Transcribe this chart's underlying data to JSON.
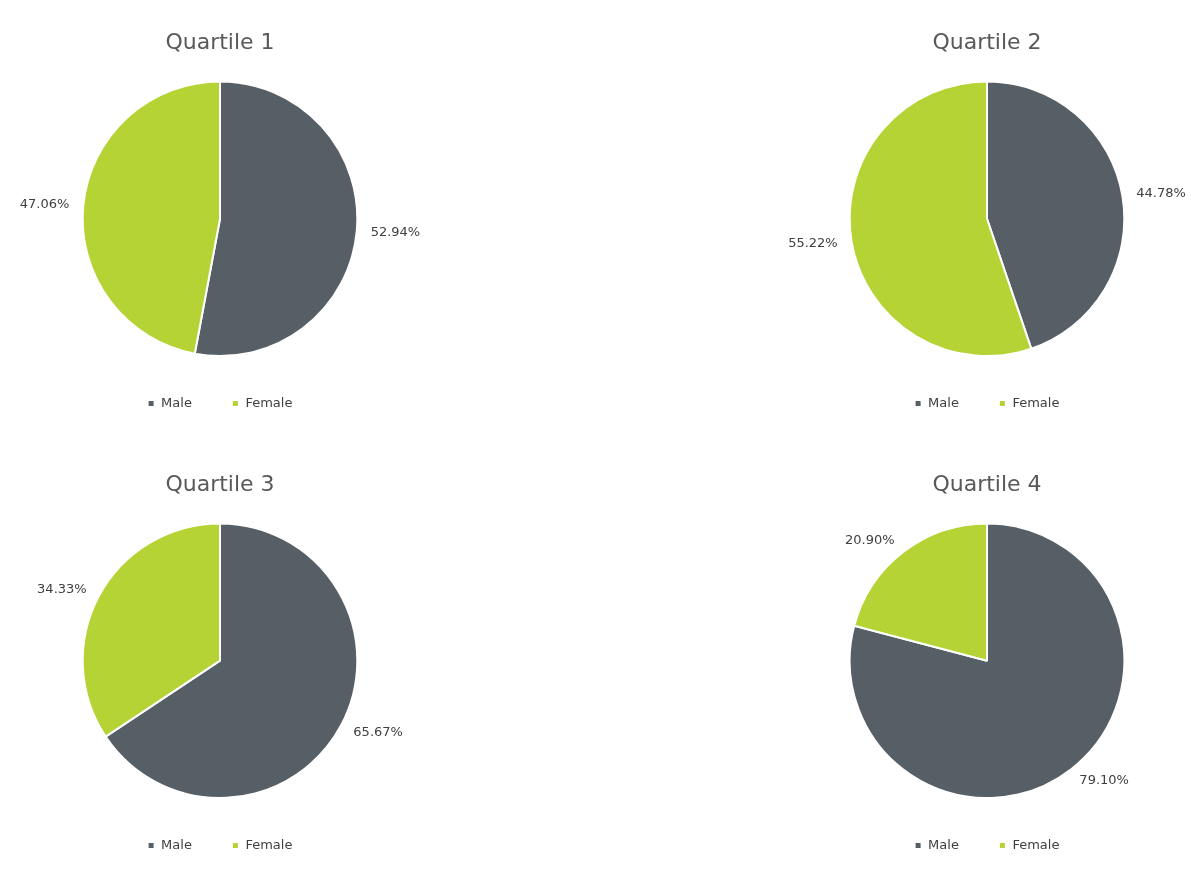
{
  "chart_data": [
    {
      "type": "pie",
      "title": "Quartile 1",
      "categories": [
        "Male",
        "Female"
      ],
      "values": [
        52.94,
        47.06
      ],
      "value_labels": [
        "52.94%",
        "47.06%"
      ],
      "colors": [
        "#565e66",
        "#b5d334"
      ],
      "legend": "bottom"
    },
    {
      "type": "pie",
      "title": "Quartile 2",
      "categories": [
        "Male",
        "Female"
      ],
      "values": [
        44.78,
        55.22
      ],
      "value_labels": [
        "44.78%",
        "55.22%"
      ],
      "colors": [
        "#565e66",
        "#b5d334"
      ],
      "legend": "bottom"
    },
    {
      "type": "pie",
      "title": "Quartile 3",
      "categories": [
        "Male",
        "Female"
      ],
      "values": [
        65.67,
        34.33
      ],
      "value_labels": [
        "65.67%",
        "34.33%"
      ],
      "colors": [
        "#565e66",
        "#b5d334"
      ],
      "legend": "bottom"
    },
    {
      "type": "pie",
      "title": "Quartile 4",
      "categories": [
        "Male",
        "Female"
      ],
      "values": [
        79.1,
        20.9
      ],
      "value_labels": [
        "79.10%",
        "20.90%"
      ],
      "colors": [
        "#565e66",
        "#b5d334"
      ],
      "legend": "bottom"
    }
  ]
}
